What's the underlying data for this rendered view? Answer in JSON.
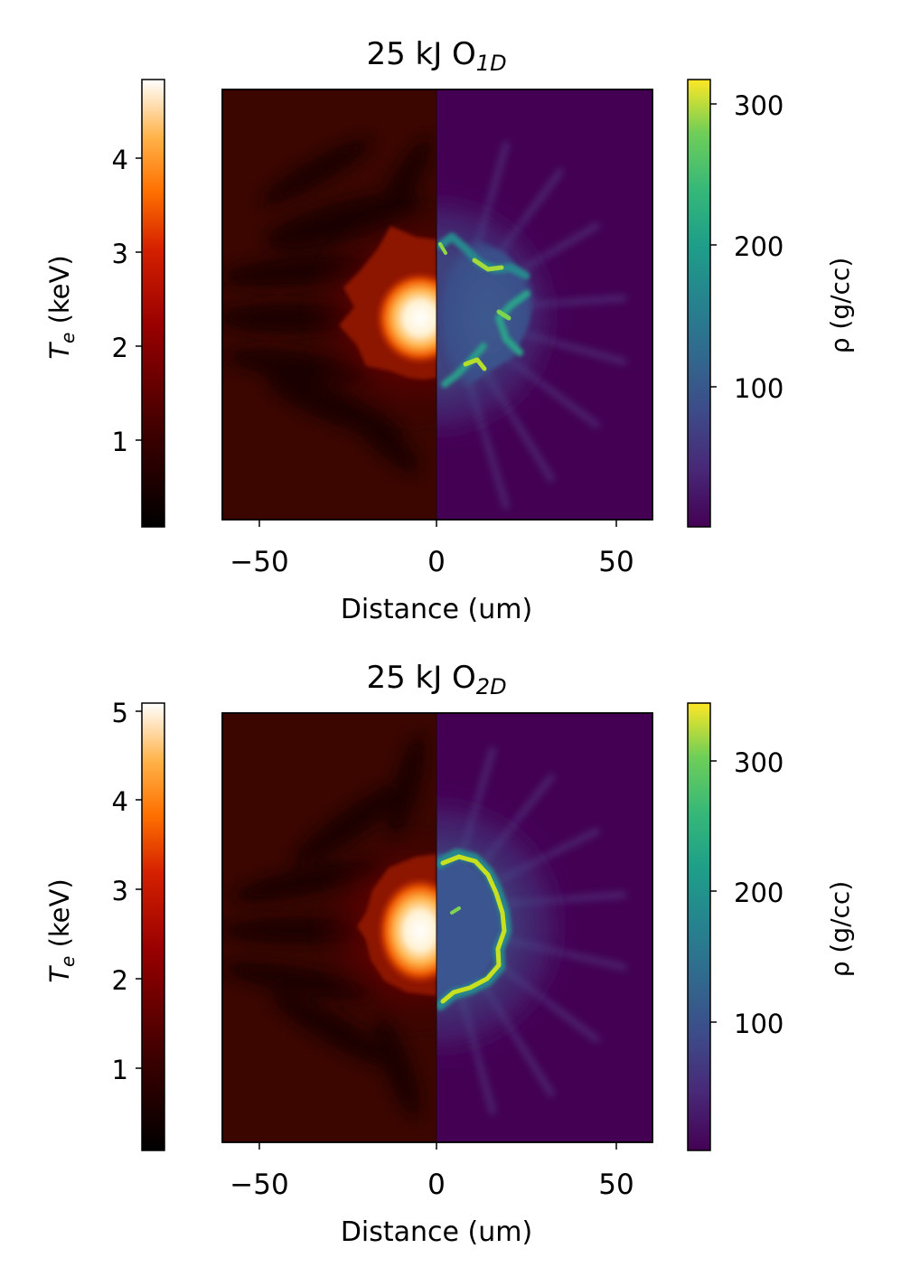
{
  "chart_data": [
    {
      "type": "heatmap",
      "title": "25 kJ O",
      "title_subscript": "1D",
      "xlabel": "Distance (um)",
      "xlim": [
        -60,
        60
      ],
      "xticks": [
        -50,
        0,
        50
      ],
      "xtick_labels": [
        "−50",
        "0",
        "50"
      ],
      "left_colorbar": {
        "label_main": "T",
        "label_sub": "e",
        "label_tail": " (keV)",
        "colormap": "gist_heat",
        "range": [
          0.12,
          4.8
        ],
        "ticks": [
          1,
          2,
          3,
          4
        ],
        "tick_labels": [
          "1",
          "2",
          "3",
          "4"
        ]
      },
      "right_colorbar": {
        "label": "ρ (g/cc)",
        "colormap": "viridis",
        "range": [
          2,
          318
        ],
        "ticks": [
          100,
          200,
          300
        ],
        "tick_labels": [
          "100",
          "200",
          "300"
        ]
      },
      "left_half": "electron temperature T_e (x < 0), hot core peak ~4.8 keV",
      "right_half": "density ρ (x > 0), asymmetric fragmented shell peak ~300 g/cc",
      "core_y": 8,
      "shell_radius": 17
    },
    {
      "type": "heatmap",
      "title": "25 kJ O",
      "title_subscript": "2D",
      "xlabel": "Distance (um)",
      "xlim": [
        -60,
        60
      ],
      "xticks": [
        -50,
        0,
        50
      ],
      "xtick_labels": [
        "−50",
        "0",
        "50"
      ],
      "left_colorbar": {
        "label_main": "T",
        "label_sub": "e",
        "label_tail": " (keV)",
        "colormap": "gist_heat",
        "range": [
          0.12,
          5.08
        ],
        "ticks": [
          1,
          2,
          3,
          4,
          5
        ],
        "tick_labels": [
          "1",
          "2",
          "3",
          "4",
          "5"
        ]
      },
      "right_colorbar": {
        "label": "ρ (g/cc)",
        "colormap": "viridis",
        "range": [
          2,
          345
        ],
        "ticks": [
          100,
          200,
          300
        ],
        "tick_labels": [
          "100",
          "200",
          "300"
        ]
      },
      "left_half": "electron temperature T_e (x < 0), hot core peak ~5 keV",
      "right_half": "density ρ (x > 0), near-spherical dense shell peak ~340 g/cc",
      "core_y": 0,
      "shell_radius": 19
    }
  ]
}
